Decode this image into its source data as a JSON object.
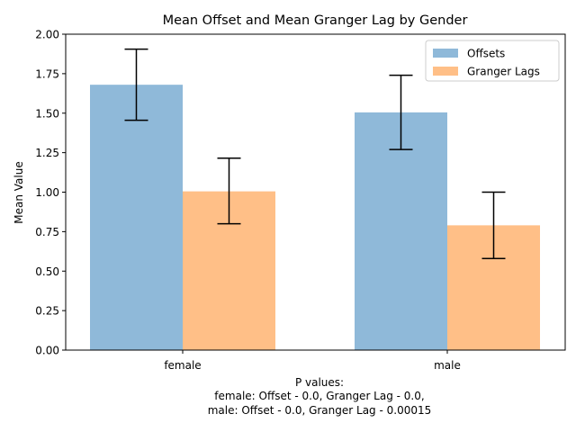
{
  "chart_data": {
    "type": "bar",
    "title": "Mean Offset and Mean Granger Lag by Gender",
    "xlabel": "P values:",
    "xlabel_lines": [
      "female: Offset - 0.0, Granger Lag - 0.0,",
      "male: Offset - 0.0, Granger Lag - 0.00015"
    ],
    "ylabel": "Mean Value",
    "ylim": [
      0,
      2.0
    ],
    "yticks": [
      "0.00",
      "0.25",
      "0.50",
      "0.75",
      "1.00",
      "1.25",
      "1.50",
      "1.75",
      "2.00"
    ],
    "ytick_values": [
      0,
      0.25,
      0.5,
      0.75,
      1.0,
      1.25,
      1.5,
      1.75,
      2.0
    ],
    "categories": [
      "female",
      "male"
    ],
    "grid": false,
    "legend_position": "top-right",
    "series": [
      {
        "name": "Offsets",
        "color": "#8fb9d9",
        "values": [
          1.68,
          1.505
        ],
        "error_low": [
          1.455,
          1.27
        ],
        "error_high": [
          1.905,
          1.74
        ]
      },
      {
        "name": "Granger Lags",
        "color": "#ffbf87",
        "values": [
          1.005,
          0.79
        ],
        "error_low": [
          0.8,
          0.58
        ],
        "error_high": [
          1.215,
          1.0
        ]
      }
    ]
  }
}
